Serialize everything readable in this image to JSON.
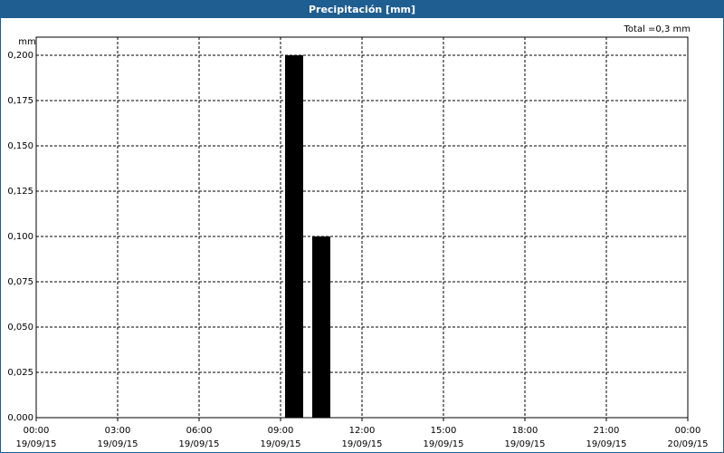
{
  "chart_data": {
    "type": "bar",
    "title": "Precipitación [mm]",
    "y_label": "mm",
    "annotation": "Total =0,3 mm",
    "x": [
      9.5,
      10.5
    ],
    "values": [
      0.2,
      0.1
    ],
    "color": "#000000",
    "xlim": [
      0,
      24
    ],
    "xticks": [
      {
        "value": 0,
        "label": [
          "00:00",
          "19/09/15"
        ]
      },
      {
        "value": 3,
        "label": [
          "03:00",
          "19/09/15"
        ]
      },
      {
        "value": 6,
        "label": [
          "06:00",
          "19/09/15"
        ]
      },
      {
        "value": 9,
        "label": [
          "09:00",
          "19/09/15"
        ]
      },
      {
        "value": 12,
        "label": [
          "12:00",
          "19/09/15"
        ]
      },
      {
        "value": 15,
        "label": [
          "15:00",
          "19/09/15"
        ]
      },
      {
        "value": 18,
        "label": [
          "18:00",
          "19/09/15"
        ]
      },
      {
        "value": 21,
        "label": [
          "21:00",
          "19/09/15"
        ]
      },
      {
        "value": 24,
        "label": [
          "00:00",
          "20/09/15"
        ]
      }
    ],
    "ylim": [
      0,
      0.21
    ],
    "yticks": [
      {
        "value": 0,
        "label": "0,000"
      },
      {
        "value": 0.025,
        "label": "0,025"
      },
      {
        "value": 0.05,
        "label": "0,050"
      },
      {
        "value": 0.075,
        "label": "0,075"
      },
      {
        "value": 0.1,
        "label": "0,100"
      },
      {
        "value": 0.125,
        "label": "0,125"
      },
      {
        "value": 0.15,
        "label": "0,150"
      },
      {
        "value": 0.175,
        "label": "0,175"
      },
      {
        "value": 0.2,
        "label": "0,200"
      }
    ],
    "grid": true
  }
}
